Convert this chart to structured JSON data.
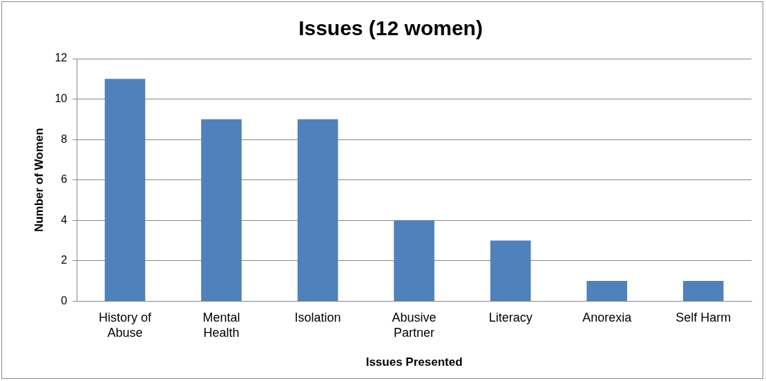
{
  "chart_data": {
    "type": "bar",
    "title": "Issues (12 women)",
    "xlabel": "Issues Presented",
    "ylabel": "Number of Women",
    "categories": [
      "History of Abuse",
      "Mental Health",
      "Isolation",
      "Abusive Partner",
      "Literacy",
      "Anorexia",
      "Self Harm"
    ],
    "values": [
      11,
      9,
      9,
      4,
      3,
      1,
      1
    ],
    "color": "#4f81bd",
    "ylim": [
      0,
      12
    ],
    "yticks": [
      0,
      2,
      4,
      6,
      8,
      10,
      12
    ],
    "grid": "y",
    "legend": false
  }
}
